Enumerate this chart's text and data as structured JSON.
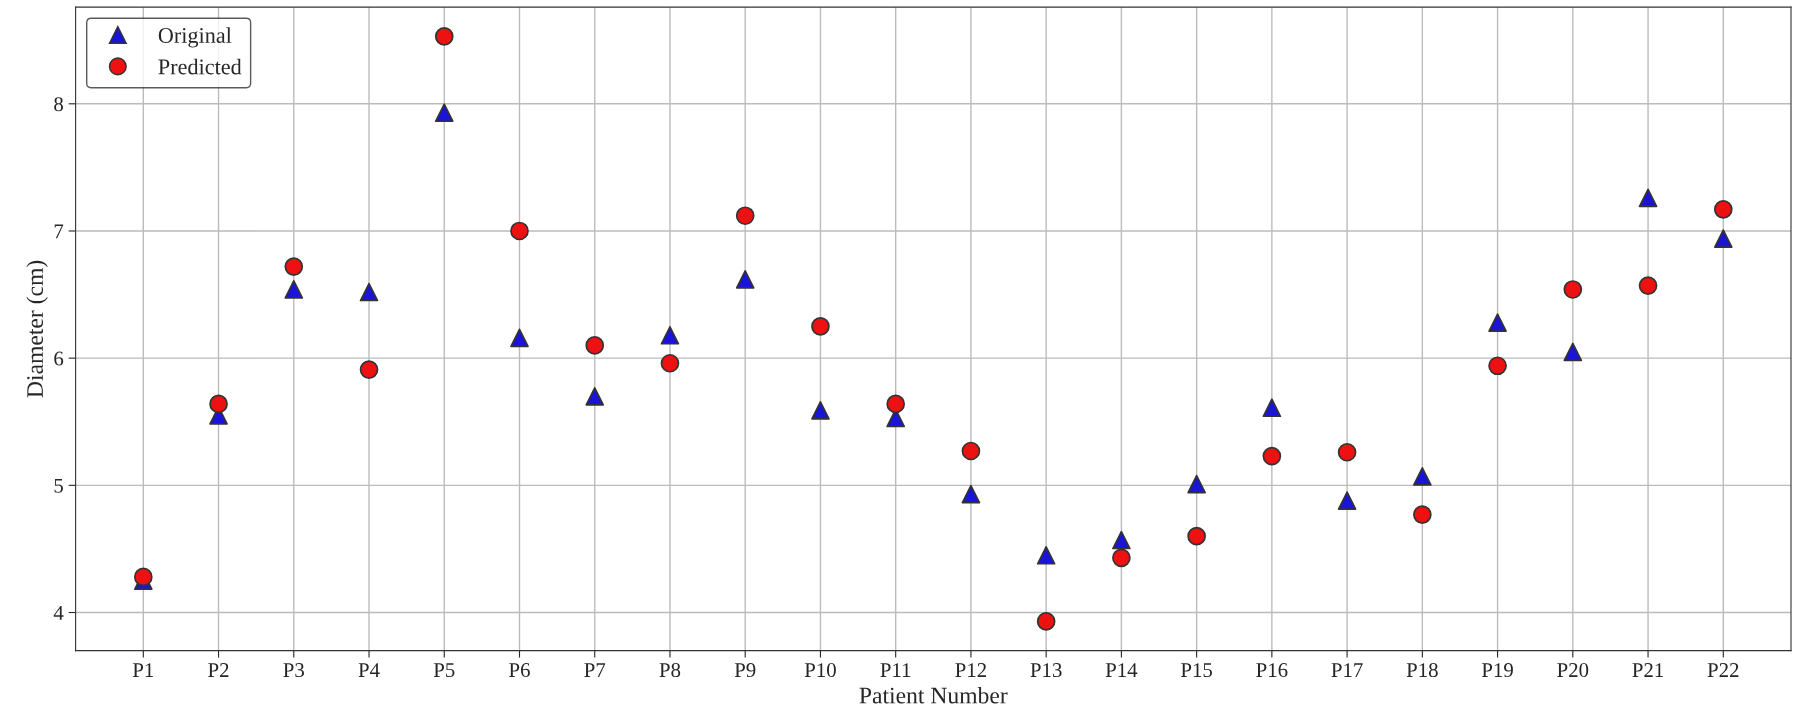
{
  "chart_data": {
    "type": "scatter",
    "xlabel": "Patient Number",
    "ylabel": "Diameter (cm)",
    "categories": [
      "P1",
      "P2",
      "P3",
      "P4",
      "P5",
      "P6",
      "P7",
      "P8",
      "P9",
      "P10",
      "P11",
      "P12",
      "P13",
      "P14",
      "P15",
      "P16",
      "P17",
      "P18",
      "P19",
      "P20",
      "P21",
      "P22"
    ],
    "series": [
      {
        "name": "Original",
        "color": "#1a14d8",
        "marker": "triangle",
        "values": [
          4.25,
          5.55,
          6.54,
          6.52,
          7.93,
          6.16,
          5.7,
          6.18,
          6.62,
          5.59,
          5.53,
          4.93,
          4.45,
          4.57,
          5.01,
          5.61,
          4.88,
          5.07,
          6.28,
          6.05,
          7.26,
          6.94
        ]
      },
      {
        "name": "Predicted",
        "color": "#ee1111",
        "marker": "circle",
        "values": [
          4.28,
          5.64,
          6.72,
          5.91,
          8.53,
          7.0,
          6.1,
          5.96,
          7.12,
          6.25,
          5.64,
          5.27,
          3.93,
          4.43,
          4.6,
          5.23,
          5.26,
          4.77,
          5.94,
          6.54,
          6.57,
          7.17
        ]
      }
    ],
    "ylim": [
      3.7,
      8.76
    ],
    "yticks": [
      4,
      5,
      6,
      7,
      8
    ],
    "grid": true,
    "legend": "top left"
  }
}
